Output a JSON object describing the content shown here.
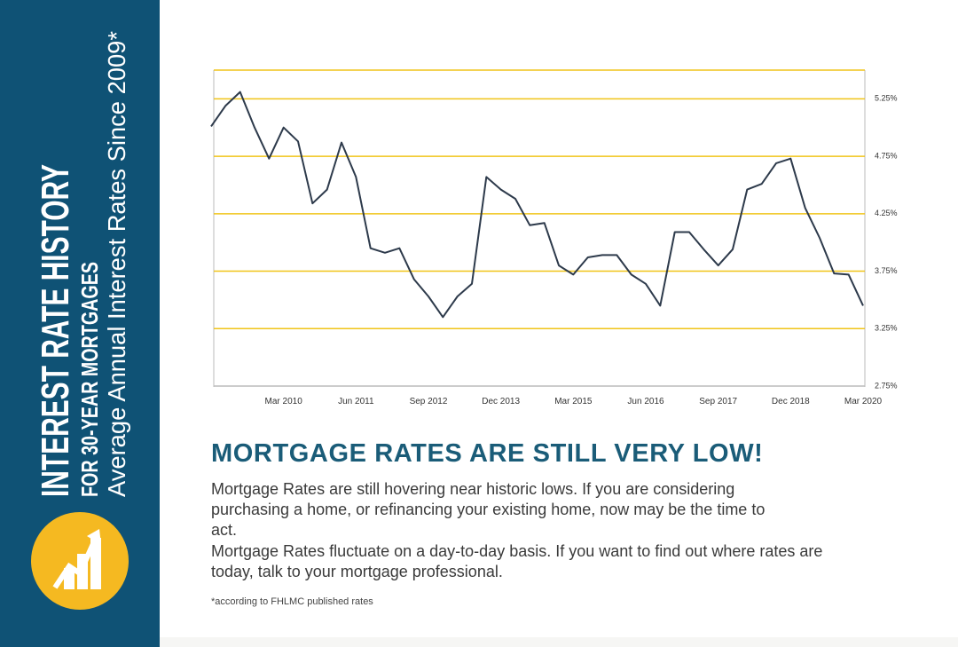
{
  "sidebar": {
    "title": "INTEREST RATE HISTORY",
    "subtitle": "FOR 30-YEAR MORTGAGES",
    "tagline": "Average Annual Interest Rates Since 2009*"
  },
  "content": {
    "headline": "MORTGAGE RATES ARE STILL VERY LOW!",
    "paragraphs": [
      "Mortgage Rates are still hovering near historic lows. If you are considering purchasing a home, or refinancing your existing home, now may be the time to act.",
      "Mortgage Rates fluctuate on a day-to-day basis. If you want to find out where rates are today, talk to your mortgage professional."
    ],
    "footnote": "*according to FHLMC published rates"
  },
  "chart_data": {
    "type": "line",
    "color": "#2d3a4b",
    "grid": true,
    "grid_color": "#f0c419",
    "categories": [
      null,
      null,
      null,
      null,
      null,
      "Mar 2010",
      null,
      null,
      null,
      null,
      "Jun 2011",
      null,
      null,
      null,
      null,
      "Sep 2012",
      null,
      null,
      null,
      null,
      "Dec 2013",
      null,
      null,
      null,
      null,
      "Mar 2015",
      null,
      null,
      null,
      null,
      "Jun 2016",
      null,
      null,
      null,
      null,
      "Sep 2017",
      null,
      null,
      null,
      null,
      "Dec 2018",
      null,
      null,
      null,
      null,
      "Mar 2020"
    ],
    "values": [
      5.01,
      5.19,
      5.31,
      5.0,
      4.73,
      5.0,
      4.88,
      4.34,
      4.46,
      4.87,
      4.57,
      3.95,
      3.91,
      3.95,
      3.68,
      3.53,
      3.35,
      3.53,
      3.64,
      4.57,
      4.46,
      4.38,
      4.15,
      4.17,
      3.8,
      3.72,
      3.87,
      3.89,
      3.89,
      3.72,
      3.64,
      3.45,
      4.09,
      4.09,
      3.94,
      3.8,
      3.94,
      4.46,
      4.51,
      4.69,
      4.73,
      4.3,
      4.04,
      3.73,
      3.72,
      3.45
    ],
    "ylim": [
      2.75,
      5.5
    ],
    "yticks": [
      {
        "value": 2.75,
        "label": "2.75%"
      },
      {
        "value": 3.25,
        "label": "3.25%"
      },
      {
        "value": 3.75,
        "label": "3.75%"
      },
      {
        "value": 4.25,
        "label": "4.25%"
      },
      {
        "value": 4.75,
        "label": "4.75%"
      },
      {
        "value": 5.25,
        "label": "5.25%"
      }
    ]
  }
}
